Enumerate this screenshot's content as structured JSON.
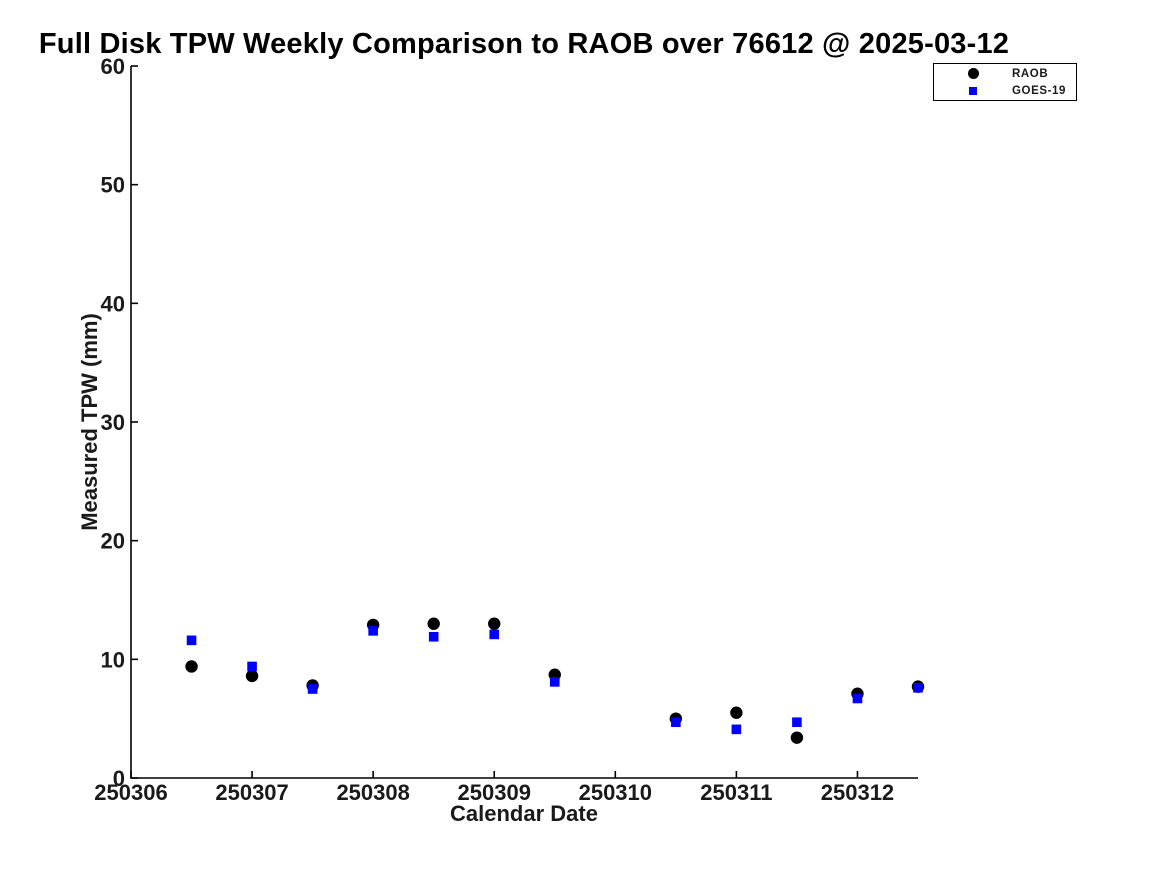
{
  "chart_data": {
    "type": "scatter",
    "title": "Full Disk TPW Weekly Comparison to RAOB over 76612 @ 2025-03-12",
    "xlabel": "Calendar Date",
    "ylabel": "Measured TPW (mm)",
    "xlim": [
      250306,
      250312.5
    ],
    "ylim": [
      0,
      60
    ],
    "xticks": [
      250306,
      250307,
      250308,
      250309,
      250310,
      250311,
      250312
    ],
    "xtick_labels": [
      "250306",
      "250307",
      "250308",
      "250309",
      "250310",
      "250311",
      "250312"
    ],
    "yticks": [
      0,
      10,
      20,
      30,
      40,
      50,
      60
    ],
    "ytick_labels": [
      "0",
      "10",
      "20",
      "30",
      "40",
      "50",
      "60"
    ],
    "grid": false,
    "legend_position": "upper right outside",
    "x": [
      250306.5,
      250307,
      250307.5,
      250308,
      250308.5,
      250309,
      250309.5,
      250310.5,
      250311,
      250311.5,
      250312,
      250312.5
    ],
    "series": [
      {
        "name": "RAOB",
        "marker": "circle",
        "color": "#000000",
        "values": [
          9.4,
          8.6,
          7.8,
          12.9,
          13.0,
          13.0,
          8.7,
          5.0,
          5.5,
          3.4,
          7.1,
          7.7
        ]
      },
      {
        "name": "GOES-19",
        "marker": "square",
        "color": "#0000ff",
        "values": [
          11.6,
          9.4,
          7.5,
          12.4,
          11.9,
          12.1,
          8.1,
          4.7,
          4.1,
          4.7,
          6.7,
          7.6
        ]
      }
    ]
  }
}
